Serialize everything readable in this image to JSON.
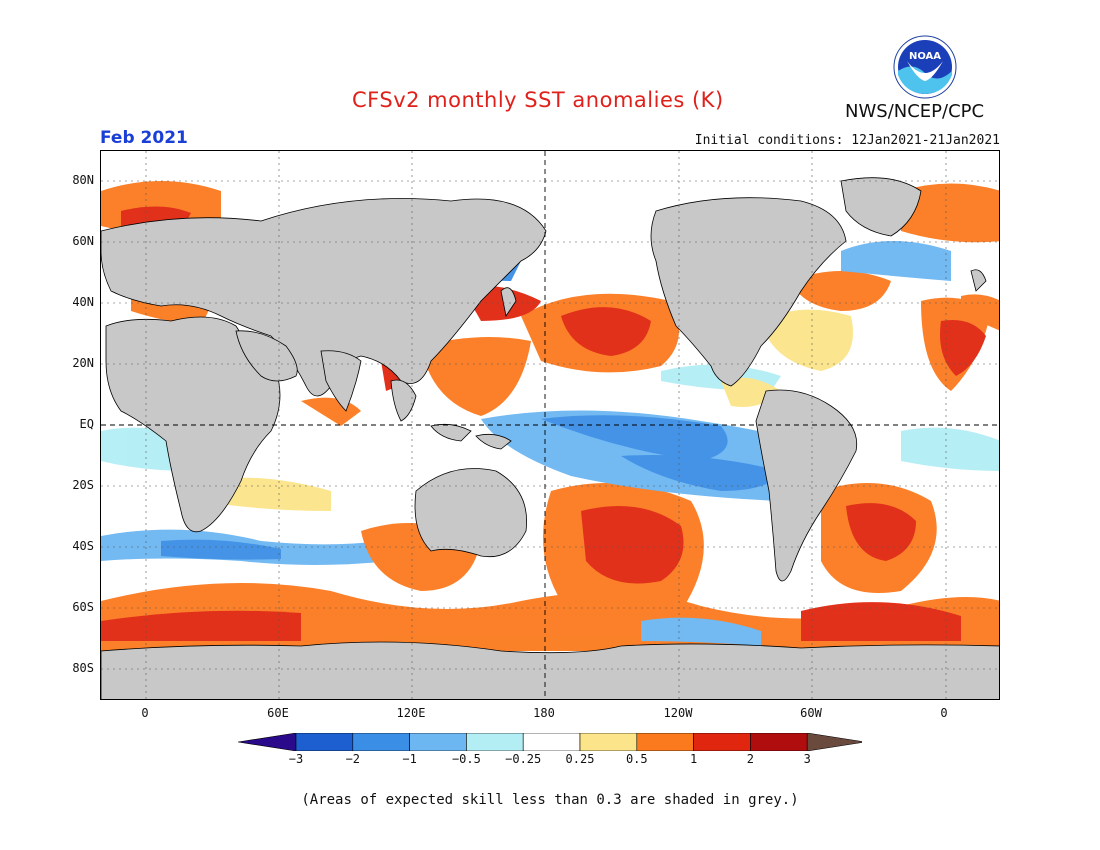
{
  "header": {
    "title": "CFSv2 monthly SST anomalies (K)",
    "month": "Feb 2021",
    "initial_conditions": "Initial conditions: 12Jan2021-21Jan2021",
    "org": "NWS/NCEP/CPC",
    "logo_text": "NOAA",
    "logo_icon": "noaa-logo-icon"
  },
  "axes": {
    "y_labels": [
      "80N",
      "60N",
      "40N",
      "20N",
      "EQ",
      "20S",
      "40S",
      "60S",
      "80S"
    ],
    "x_labels": [
      "0",
      "60E",
      "120E",
      "180",
      "120W",
      "60W",
      "0"
    ]
  },
  "colorbar": {
    "labels": [
      "-3",
      "-2",
      "-1",
      "-0.5",
      "-0.25",
      "0.25",
      "0.5",
      "1",
      "2",
      "3"
    ],
    "colors": [
      "#2a0a8a",
      "#1d5fd1",
      "#3a8ee6",
      "#6cb6f2",
      "#b3eef5",
      "#ffffff",
      "#fce48a",
      "#fb7a1e",
      "#e0260f",
      "#b00e0e",
      "#6b4a3e"
    ]
  },
  "footer": {
    "note": "(Areas of expected skill less than 0.3 are shaded in grey.)"
  },
  "colors": {
    "land": "#c8c8c8",
    "title": "#e0201b",
    "month": "#1a3fd6"
  }
}
